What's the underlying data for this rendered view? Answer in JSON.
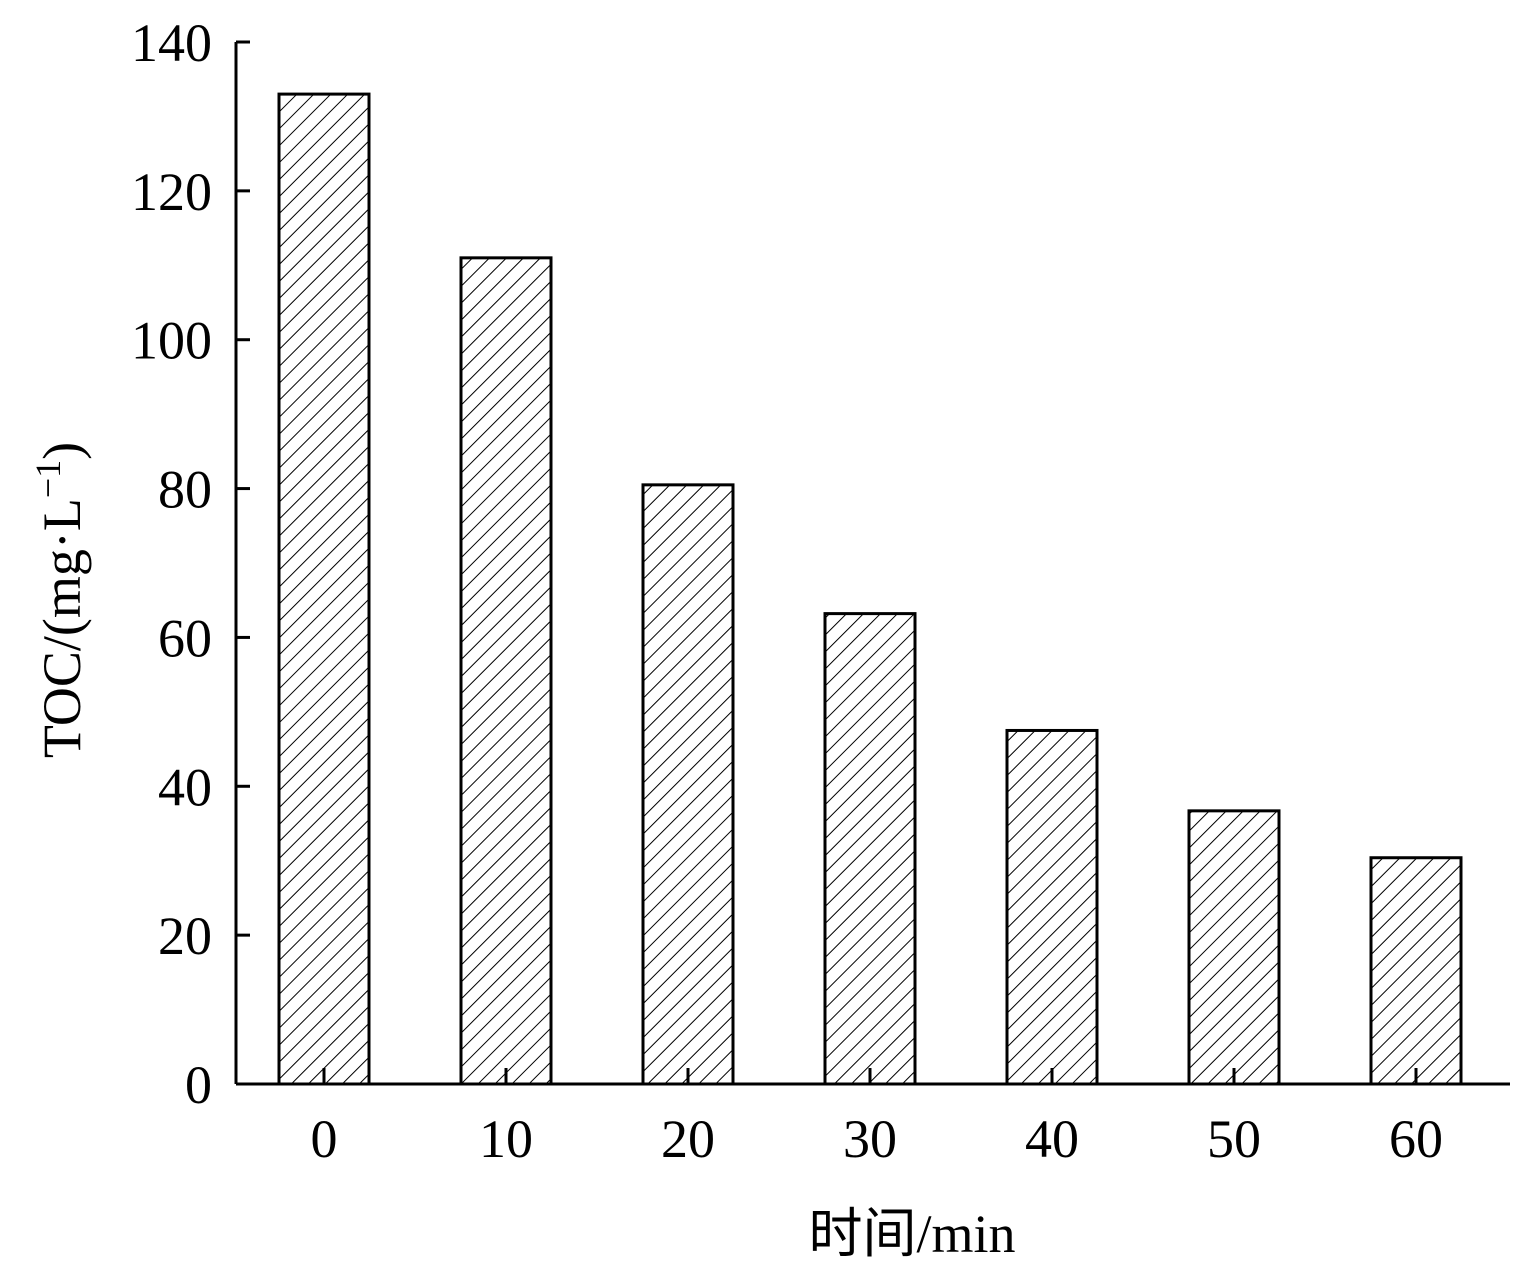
{
  "chart_data": {
    "type": "bar",
    "title": "",
    "xlabel": "时间/min",
    "ylabel_main": "TOC/(mg·L",
    "ylabel_sup": "−1",
    "ylabel_close": ")",
    "categories": [
      "0",
      "10",
      "20",
      "30",
      "40",
      "50",
      "60"
    ],
    "values": [
      133,
      111,
      80.5,
      63.2,
      47.5,
      36.7,
      30.4
    ],
    "ylim": [
      0,
      140
    ],
    "yticks": [
      0,
      20,
      40,
      60,
      80,
      100,
      120,
      140
    ],
    "grid": false,
    "legend": "none",
    "fill_pattern": "diagonal-hatch",
    "bar_edge_color": "#000000",
    "hatch_color": "#000000"
  }
}
